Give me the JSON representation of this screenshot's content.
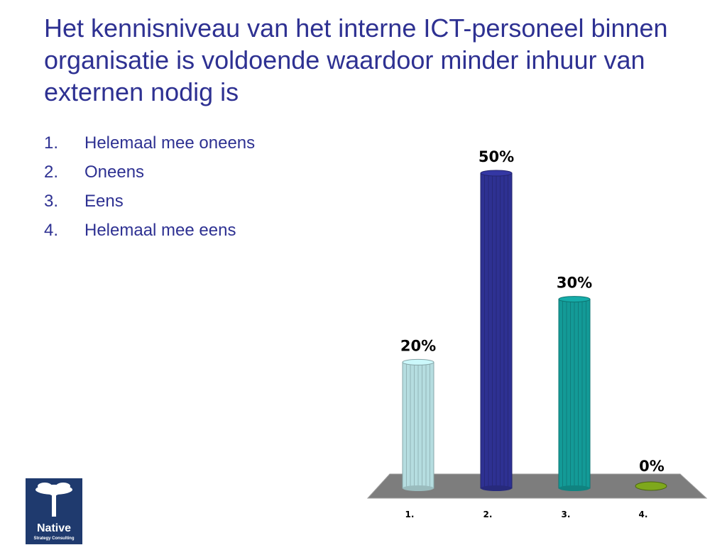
{
  "title": "Het kennisniveau van het interne ICT-personeel binnen organisatie is voldoende waardoor minder inhuur van externen nodig is",
  "options": [
    {
      "num": "1.",
      "label": "Helemaal mee oneens"
    },
    {
      "num": "2.",
      "label": "Oneens"
    },
    {
      "num": "3.",
      "label": "Eens"
    },
    {
      "num": "4.",
      "label": "Helemaal mee eens"
    }
  ],
  "chart_data": {
    "type": "bar",
    "categories": [
      "1.",
      "2.",
      "3.",
      "4."
    ],
    "values": [
      20,
      50,
      30,
      0
    ],
    "value_labels": [
      "20%",
      "50%",
      "30%",
      "0%"
    ],
    "colors": [
      "#b5dde0",
      "#2e3192",
      "#139a97",
      "#7ea81c"
    ],
    "ylim": [
      0,
      50
    ],
    "grid": false,
    "style": "3d-cylinder"
  },
  "logo": {
    "name": "Native",
    "tagline": "Strategy Consulting"
  }
}
